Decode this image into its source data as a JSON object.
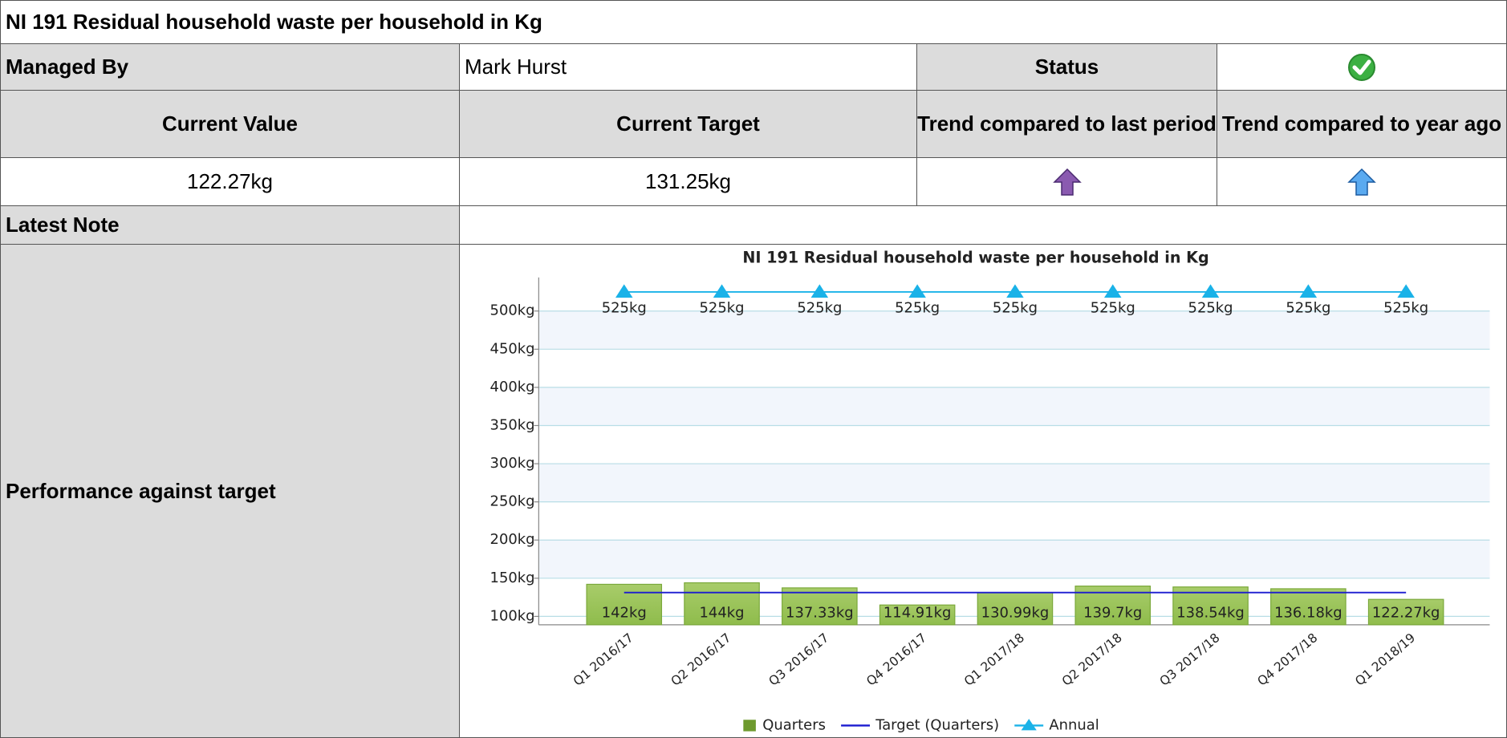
{
  "table": {
    "title": "NI 191 Residual household waste per household in Kg",
    "managed_by_label": "Managed By",
    "managed_by": "Mark Hurst",
    "status_label": "Status",
    "headers": [
      "Current Value",
      "Current Target",
      "Trend compared to last period",
      "Trend compared to year ago"
    ],
    "values": [
      "122.27kg",
      "131.25kg"
    ],
    "latest_note_label": "Latest Note",
    "performance_label": "Performance against target"
  },
  "chart_data": {
    "type": "bar",
    "title": "NI 191 Residual household waste per household in Kg",
    "categories": [
      "Q1 2016/17",
      "Q2 2016/17",
      "Q3 2016/17",
      "Q4 2016/17",
      "Q1 2017/18",
      "Q2 2017/18",
      "Q3 2017/18",
      "Q4 2017/18",
      "Q1 2018/19"
    ],
    "series": [
      {
        "name": "Quarters",
        "type": "bar",
        "color": "#8fbc4c",
        "values": [
          142,
          144,
          137.33,
          114.91,
          130.99,
          139.7,
          138.54,
          136.18,
          122.27
        ],
        "value_labels": [
          "142kg",
          "144kg",
          "137.33kg",
          "114.91kg",
          "130.99kg",
          "139.7kg",
          "138.54kg",
          "136.18kg",
          "122.27kg"
        ]
      },
      {
        "name": "Target (Quarters)",
        "type": "line",
        "color": "#1a1ad0",
        "values": [
          131.25,
          131.25,
          131.25,
          131.25,
          131.25,
          131.25,
          131.25,
          131.25,
          131.25
        ]
      },
      {
        "name": "Annual",
        "type": "line",
        "color": "#1ab2e8",
        "marker": "triangle",
        "values": [
          525,
          525,
          525,
          525,
          525,
          525,
          525,
          525,
          525
        ],
        "value_labels": [
          "525kg",
          "525kg",
          "525kg",
          "525kg",
          "525kg",
          "525kg",
          "525kg",
          "525kg",
          "525kg"
        ]
      }
    ],
    "ylim": [
      89,
      544
    ],
    "yticks": [
      {
        "value": 100,
        "label": "100kg"
      },
      {
        "value": 150,
        "label": "150kg"
      },
      {
        "value": 200,
        "label": "200kg"
      },
      {
        "value": 250,
        "label": "250kg"
      },
      {
        "value": 300,
        "label": "300kg"
      },
      {
        "value": 350,
        "label": "350kg"
      },
      {
        "value": 400,
        "label": "400kg"
      },
      {
        "value": 450,
        "label": "450kg"
      },
      {
        "value": 500,
        "label": "500kg"
      }
    ],
    "grid": true,
    "legend": "bottom"
  }
}
